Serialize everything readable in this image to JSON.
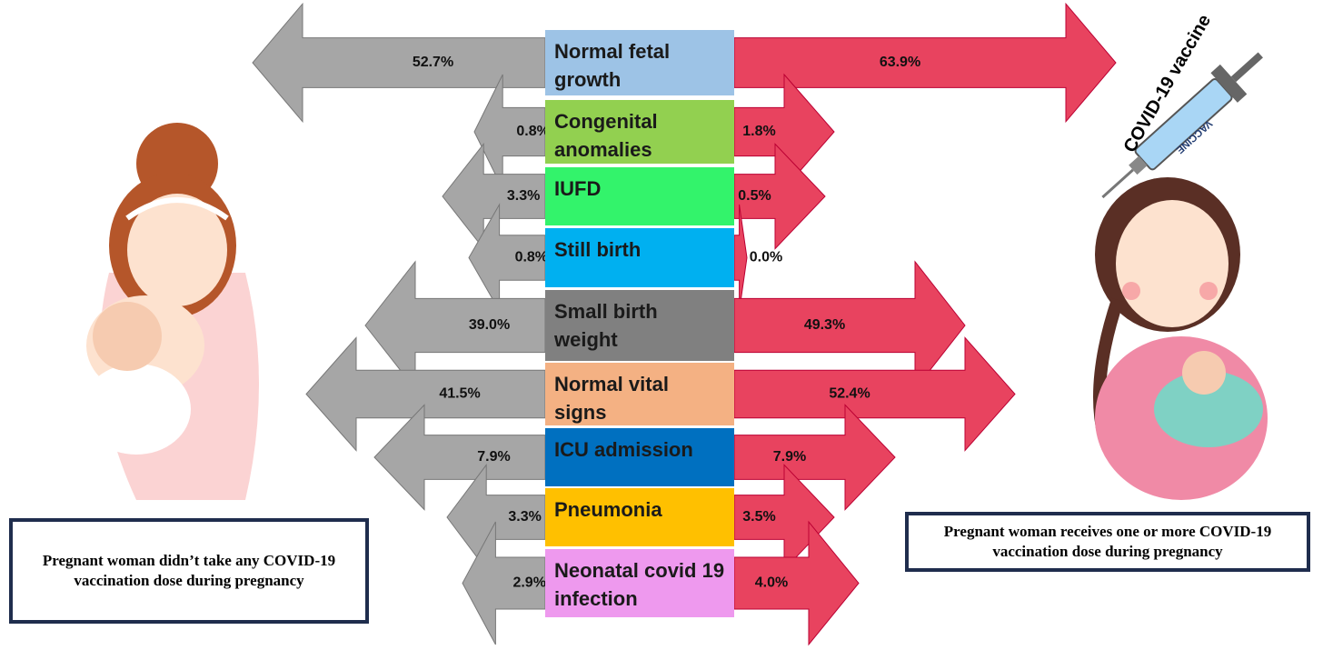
{
  "rows": [
    {
      "label": "Normal fetal growth",
      "unvaccinated": "52.7%",
      "vaccinated": "63.9%"
    },
    {
      "label": "Congenital anomalies",
      "unvaccinated": "0.8%",
      "vaccinated": "1.8%"
    },
    {
      "label": "IUFD",
      "unvaccinated": "3.3%",
      "vaccinated": "0.5%"
    },
    {
      "label": "Still birth",
      "unvaccinated": "0.8%",
      "vaccinated": "0.0%"
    },
    {
      "label": "Small birth weight",
      "unvaccinated": "39.0%",
      "vaccinated": "49.3%"
    },
    {
      "label": "Normal vital signs",
      "unvaccinated": "41.5%",
      "vaccinated": "52.4%"
    },
    {
      "label": "ICU admission",
      "unvaccinated": "7.9%",
      "vaccinated": "7.9%"
    },
    {
      "label": "Pneumonia",
      "unvaccinated": "3.3%",
      "vaccinated": "3.5%"
    },
    {
      "label": "Neonatal covid 19 infection",
      "unvaccinated": "2.9%",
      "vaccinated": "4.0%"
    }
  ],
  "left_caption": "Pregnant woman didn’t take any COVID-19 vaccination dose during pregnancy",
  "right_caption": "Pregnant woman receives one or more COVID-19 vaccination dose during pregnancy",
  "syringe": {
    "title": "COVID-19 vaccine",
    "label": "VACCINE"
  }
}
